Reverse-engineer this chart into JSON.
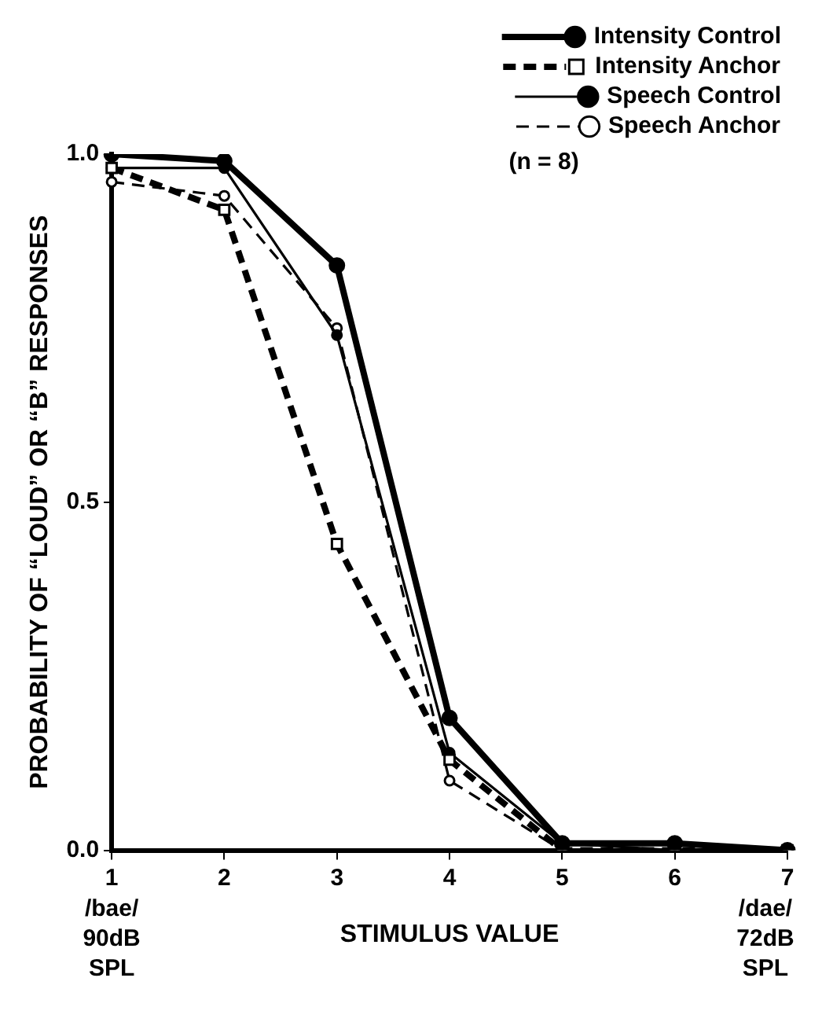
{
  "chart_data": {
    "type": "line",
    "ylabel": "PROBABILITY OF “LOUD” OR “B” RESPONSES",
    "xlabel": "STIMULUS VALUE",
    "categories": [
      "1",
      "2",
      "3",
      "4",
      "5",
      "6",
      "7"
    ],
    "ylim": [
      0,
      1
    ],
    "yticks": [
      {
        "value": 0,
        "label": "0.0"
      },
      {
        "value": 0.5,
        "label": "0.5"
      },
      {
        "value": 1,
        "label": "1.0"
      }
    ],
    "grid": false,
    "legend": "top right",
    "series": [
      {
        "name": "Intensity Control",
        "color": "#000000",
        "marker": "circle",
        "line_style": "solid",
        "values": [
          1.0,
          0.99,
          0.84,
          0.19,
          0.01,
          0.01,
          0.0
        ]
      },
      {
        "name": "Intensity Anchor",
        "color": "#000000",
        "marker": "square",
        "line_style": "dashed",
        "values": [
          0.98,
          0.92,
          0.44,
          0.13,
          0.0,
          0.0,
          0.0
        ]
      },
      {
        "name": "Speech Control",
        "color": "#000000",
        "marker": "circle",
        "line_style": "solid",
        "values": [
          0.98,
          0.98,
          0.74,
          0.14,
          0.01,
          0.0,
          0.0
        ]
      },
      {
        "name": "Speech Anchor",
        "color": "#000000",
        "marker": "circle",
        "line_style": "dashed",
        "values": [
          0.96,
          0.94,
          0.75,
          0.1,
          0.0,
          0.0,
          0.0
        ]
      }
    ],
    "annotations": [
      "/bae/ 90dB SPL",
      "/dae/ 72dB SPL",
      "(n = 8)"
    ]
  }
}
